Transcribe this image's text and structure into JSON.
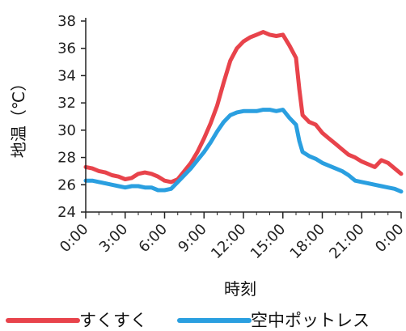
{
  "chart_data": {
    "type": "line",
    "xlabel": "時刻",
    "ylabel": "地温（℃）",
    "ylim": [
      24,
      38
    ],
    "y_ticks": [
      "24",
      "26",
      "28",
      "30",
      "32",
      "34",
      "36",
      "38"
    ],
    "x_ticks": [
      "0:00",
      "3:00",
      "6:00",
      "9:00",
      "12:00",
      "15:00",
      "18:00",
      "21:00",
      "0:00"
    ],
    "x_range_hours": [
      0,
      24
    ],
    "grid": false,
    "legend_position": "bottom",
    "series": [
      {
        "name": "すくすく",
        "color": "#e8434b",
        "x": [
          0,
          0.5,
          1,
          1.5,
          2,
          2.5,
          3,
          3.5,
          4,
          4.5,
          5,
          5.5,
          6,
          6.5,
          7,
          7.5,
          8,
          8.5,
          9,
          9.5,
          10,
          10.5,
          11,
          11.5,
          12,
          12.5,
          13,
          13.5,
          14,
          14.5,
          15,
          15.5,
          16,
          16.25,
          16.5,
          17,
          17.5,
          18,
          18.5,
          19,
          19.5,
          20,
          20.5,
          21,
          21.5,
          22,
          22.5,
          23,
          23.5,
          24
        ],
        "values": [
          27.3,
          27.2,
          27.0,
          26.9,
          26.7,
          26.6,
          26.4,
          26.5,
          26.8,
          26.9,
          26.8,
          26.6,
          26.3,
          26.2,
          26.4,
          27.0,
          27.6,
          28.4,
          29.4,
          30.5,
          31.8,
          33.5,
          35.1,
          36.0,
          36.5,
          36.8,
          37.0,
          37.2,
          37.0,
          36.9,
          37.0,
          36.2,
          35.3,
          33.0,
          31.1,
          30.6,
          30.4,
          29.8,
          29.4,
          29.0,
          28.6,
          28.2,
          28.0,
          27.7,
          27.5,
          27.3,
          27.8,
          27.6,
          27.2,
          26.8
        ]
      },
      {
        "name": "空中ポットレス",
        "color": "#2a9fe0",
        "x": [
          0,
          0.5,
          1,
          1.5,
          2,
          2.5,
          3,
          3.5,
          4,
          4.5,
          5,
          5.5,
          6,
          6.5,
          7,
          7.5,
          8,
          8.5,
          9,
          9.5,
          10,
          10.5,
          11,
          11.5,
          12,
          12.5,
          13,
          13.5,
          14,
          14.5,
          15,
          15.5,
          16,
          16.25,
          16.5,
          17,
          17.5,
          18,
          18.5,
          19,
          19.5,
          20,
          20.5,
          21,
          21.5,
          22,
          22.5,
          23,
          23.5,
          24
        ],
        "values": [
          26.3,
          26.3,
          26.2,
          26.1,
          26.0,
          25.9,
          25.8,
          25.9,
          25.9,
          25.8,
          25.8,
          25.6,
          25.6,
          25.7,
          26.2,
          26.7,
          27.2,
          27.8,
          28.4,
          29.1,
          29.9,
          30.6,
          31.1,
          31.3,
          31.4,
          31.4,
          31.4,
          31.5,
          31.5,
          31.4,
          31.5,
          30.9,
          30.4,
          29.2,
          28.4,
          28.1,
          27.9,
          27.6,
          27.4,
          27.2,
          27.0,
          26.7,
          26.3,
          26.2,
          26.1,
          26.0,
          25.9,
          25.8,
          25.7,
          25.5
        ]
      }
    ]
  }
}
